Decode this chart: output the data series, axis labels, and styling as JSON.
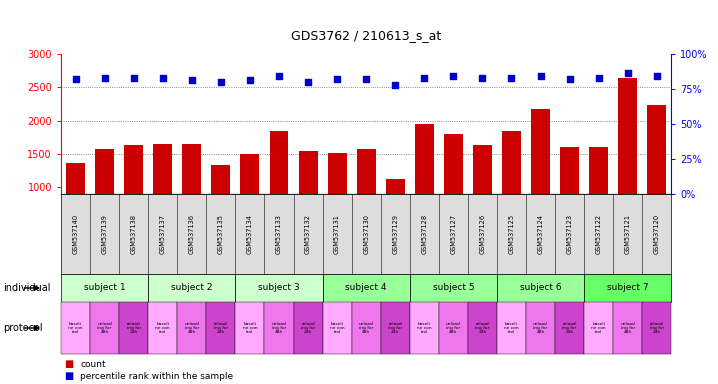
{
  "title": "GDS3762 / 210613_s_at",
  "samples": [
    "GSM537140",
    "GSM537139",
    "GSM537138",
    "GSM537137",
    "GSM537136",
    "GSM537135",
    "GSM537134",
    "GSM537133",
    "GSM537132",
    "GSM537131",
    "GSM537130",
    "GSM537129",
    "GSM537128",
    "GSM537127",
    "GSM537126",
    "GSM537125",
    "GSM537124",
    "GSM537123",
    "GSM537122",
    "GSM537121",
    "GSM537120"
  ],
  "counts": [
    1370,
    1580,
    1640,
    1650,
    1650,
    1330,
    1500,
    1840,
    1550,
    1520,
    1570,
    1130,
    1950,
    1800,
    1640,
    1840,
    2170,
    1600,
    1610,
    2640,
    2230
  ],
  "percentiles": [
    82,
    83,
    83,
    83,
    81,
    80,
    81,
    84,
    80,
    82,
    82,
    78,
    83,
    84,
    83,
    83,
    84,
    82,
    83,
    86,
    84
  ],
  "bar_color": "#cc0000",
  "dot_color": "#0000cc",
  "ylim_left": [
    900,
    3000
  ],
  "ylim_right": [
    0,
    100
  ],
  "yticks_left": [
    1000,
    1500,
    2000,
    2500,
    3000
  ],
  "yticks_right": [
    0,
    25,
    50,
    75,
    100
  ],
  "subjects": [
    {
      "label": "subject 1",
      "start": 0,
      "end": 3,
      "color": "#ccffcc"
    },
    {
      "label": "subject 2",
      "start": 3,
      "end": 6,
      "color": "#ccffcc"
    },
    {
      "label": "subject 3",
      "start": 6,
      "end": 9,
      "color": "#ccffcc"
    },
    {
      "label": "subject 4",
      "start": 9,
      "end": 12,
      "color": "#99ff99"
    },
    {
      "label": "subject 5",
      "start": 12,
      "end": 15,
      "color": "#99ff99"
    },
    {
      "label": "subject 6",
      "start": 15,
      "end": 18,
      "color": "#99ff99"
    },
    {
      "label": "subject 7",
      "start": 18,
      "end": 21,
      "color": "#66ff66"
    }
  ],
  "protocol_labels": [
    "baseli\nne con\ntrol",
    "unload\ning for\n48h",
    "reload\ning for\n24h"
  ],
  "protocol_colors": [
    "#ffaaff",
    "#ee77ee",
    "#cc44cc"
  ],
  "individual_label": "individual",
  "protocol_label": "protocol",
  "legend_count_color": "#cc0000",
  "legend_dot_color": "#0000cc",
  "bg_color": "#ffffff",
  "xtick_bg": "#dddddd",
  "grid_color": "#666666"
}
